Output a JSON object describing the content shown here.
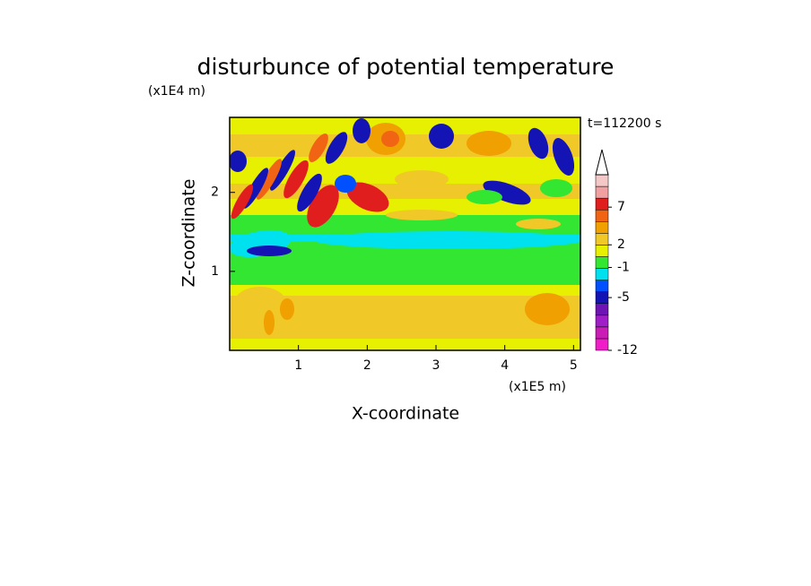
{
  "chart_data": {
    "type": "contour",
    "title": "disturbunce of potential temperature",
    "x_label": "X-coordinate",
    "y_label": "Z-coordinate",
    "x_unit_label": "(x1E5 m)",
    "y_unit_label": "(x1E4 m)",
    "time_label": "t=112200 s",
    "xlim": [
      0,
      5.1
    ],
    "xticks": [
      1,
      2,
      3,
      4,
      5
    ],
    "ylim": [
      0,
      2.95
    ],
    "yticks": [
      1,
      2
    ],
    "colorbar": {
      "lim": [
        -12,
        11.3
      ],
      "ticks": [
        -12,
        -5,
        -1,
        2,
        7
      ],
      "colors": [
        "#f01ec8",
        "#c81eb4",
        "#a01ec8",
        "#6e14b4",
        "#1414b4",
        "#0050ff",
        "#00e1f0",
        "#32e632",
        "#e6f000",
        "#f0c828",
        "#f0a000",
        "#f06414",
        "#e11e1e",
        "#f0a0a0",
        "#f5c8c8"
      ]
    }
  }
}
